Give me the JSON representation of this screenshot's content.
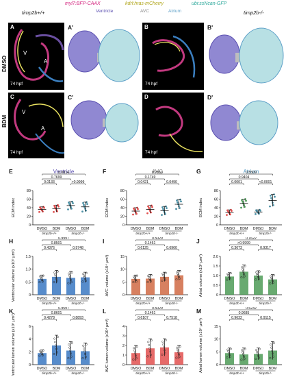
{
  "legend": {
    "items": [
      {
        "text": "myl7:BFP-CAAX",
        "color": "#d4257f"
      },
      {
        "text": "kdrl:hras-mCherry",
        "color": "#c9c21f"
      },
      {
        "text": "ubi:ssNcan-GFP",
        "color": "#2aa79a"
      }
    ]
  },
  "genotypes": {
    "wt": "timp2b+/+",
    "mut": "timp2b-/-"
  },
  "views": {
    "v": "Ventricle",
    "avc": "AVC",
    "atrium": "Atrium"
  },
  "row_labels": {
    "dmso": "DMSO",
    "bdm": "BDM"
  },
  "panels": {
    "A": "A",
    "A2": "A'",
    "B": "B",
    "B2": "B'",
    "C": "C",
    "C2": "C'",
    "D": "D",
    "D2": "D'",
    "E": "E",
    "F": "F",
    "G": "G",
    "H": "H",
    "I": "I",
    "J": "J",
    "K": "K",
    "L": "L",
    "M": "M"
  },
  "image_text": {
    "tp": "74 hpf",
    "v": "V",
    "a": "A"
  },
  "colors": {
    "ventricle": "#5a4fb0",
    "avc": "#8a8a8a",
    "atrium": "#5c9fc7",
    "red": "#e2504f",
    "green": "#4d9b57",
    "teal": "#4a8fa4",
    "blue": "#3a78c2",
    "orange": "#d06a44"
  },
  "chart_data": [
    {
      "id": "E",
      "type": "scatter",
      "title": "Ventricle",
      "ylabel": "ECM index",
      "ylim": [
        0,
        80
      ],
      "yticks": [
        "0",
        "20",
        "40",
        "60",
        "80"
      ],
      "categories": [
        "DMSO",
        "BDM",
        "DMSO",
        "BDM"
      ],
      "group_labels": [
        "timp2b+/+",
        "timp2b-/-"
      ],
      "means": [
        36,
        38,
        45,
        42
      ],
      "errors": [
        6,
        8,
        9,
        11
      ],
      "pvals": [
        {
          "p": "0.0014",
          "a": 0,
          "b": 3
        },
        {
          "p": "0.7699",
          "a": 0,
          "b": 2
        },
        {
          "p": "0.0133",
          "a": 0,
          "b": 1
        },
        {
          "p": ">0.9999",
          "a": 2,
          "b": 3
        }
      ],
      "colors": [
        "red",
        "red",
        "teal",
        "teal"
      ]
    },
    {
      "id": "F",
      "type": "scatter",
      "title": "AVC",
      "ylabel": "ECM index",
      "ylim": [
        0,
        80
      ],
      "yticks": [
        "0",
        "20",
        "40",
        "60",
        "80"
      ],
      "categories": [
        "DMSO",
        "BDM",
        "DMSO",
        "BDM"
      ],
      "group_labels": [
        "timp2b+/+",
        "timp2b-/-"
      ],
      "means": [
        32,
        36,
        33,
        48
      ],
      "errors": [
        8,
        9,
        10,
        11
      ],
      "pvals": [
        {
          "p": "0.7850",
          "a": 0,
          "b": 3
        },
        {
          "p": "0.1749",
          "a": 0,
          "b": 2
        },
        {
          "p": "0.0421",
          "a": 0,
          "b": 1
        },
        {
          "p": "0.0490",
          "a": 2,
          "b": 3
        }
      ],
      "colors": [
        "red",
        "red",
        "teal",
        "teal"
      ]
    },
    {
      "id": "G",
      "type": "scatter",
      "title": "Atrium",
      "ylabel": "ECM index",
      "ylim": [
        0,
        80
      ],
      "yticks": [
        "0",
        "20",
        "40",
        "60",
        "80"
      ],
      "categories": [
        "DMSO",
        "BDM",
        "DMSO",
        "BDM"
      ],
      "group_labels": [
        "timp2b+/+",
        "timp2b-/-"
      ],
      "means": [
        29,
        50,
        30,
        57
      ],
      "errors": [
        6,
        10,
        5,
        14
      ],
      "pvals": [
        {
          "p": "0.5509",
          "a": 0,
          "b": 3
        },
        {
          "p": "0.9404",
          "a": 0,
          "b": 2
        },
        {
          "p": "0.0001",
          "a": 0,
          "b": 1
        },
        {
          "p": "<0.0001",
          "a": 2,
          "b": 3
        }
      ],
      "colors": [
        "red",
        "green",
        "teal",
        "teal"
      ]
    },
    {
      "id": "H",
      "type": "bar",
      "ylabel": "Ventricular volume (x10⁶ μm³)",
      "ylim": [
        0,
        1.5
      ],
      "yticks": [
        "0",
        "0.5",
        "1.0",
        "1.5"
      ],
      "categories": [
        "DMSO",
        "BDM",
        "DMSO",
        "BDM"
      ],
      "group_labels": [
        "timp2b+/+",
        "timp2b-/-"
      ],
      "means": [
        0.62,
        0.7,
        0.66,
        0.68
      ],
      "errors": [
        0.15,
        0.25,
        0.25,
        0.2
      ],
      "pvals": [
        {
          "p": "0.9997",
          "a": 0,
          "b": 3
        },
        {
          "p": "0.8501",
          "a": 0,
          "b": 2
        },
        {
          "p": "0.4376",
          "a": 0,
          "b": 1
        },
        {
          "p": "0.9748",
          "a": 2,
          "b": 3
        }
      ],
      "colors": [
        "blue",
        "blue",
        "blue",
        "blue"
      ]
    },
    {
      "id": "I",
      "type": "bar",
      "ylabel": "AVC volume (x10⁴ μm³)",
      "ylim": [
        0,
        15
      ],
      "yticks": [
        "0",
        "5",
        "10",
        "15"
      ],
      "categories": [
        "DMSO",
        "BDM",
        "DMSO",
        "BDM"
      ],
      "group_labels": [
        "timp2b+/+",
        "timp2b-/-"
      ],
      "means": [
        6.2,
        6.3,
        7.0,
        7.6
      ],
      "errors": [
        1.5,
        1.6,
        1.8,
        1.9
      ],
      "pvals": [
        {
          "p": "0.5029",
          "a": 0,
          "b": 3
        },
        {
          "p": "0.1461",
          "a": 0,
          "b": 2
        },
        {
          "p": "0.6125",
          "a": 0,
          "b": 1
        },
        {
          "p": "0.6960",
          "a": 2,
          "b": 3
        }
      ],
      "colors": [
        "orange",
        "orange",
        "orange",
        "orange"
      ]
    },
    {
      "id": "J",
      "type": "bar",
      "ylabel": "Atrial volume (x10⁶ μm³)",
      "ylim": [
        0,
        2.0
      ],
      "yticks": [
        "0",
        "0.5",
        "1.0",
        "1.5",
        "2.0"
      ],
      "categories": [
        "DMSO",
        "BDM",
        "DMSO",
        "BDM"
      ],
      "group_labels": [
        "timp2b+/+",
        "timp2b-/-"
      ],
      "means": [
        0.95,
        1.2,
        1.0,
        0.8
      ],
      "errors": [
        0.2,
        0.35,
        0.25,
        0.25
      ],
      "pvals": [
        {
          "p": "0.1622",
          "a": 0,
          "b": 3
        },
        {
          "p": ">0.9999",
          "a": 0,
          "b": 2
        },
        {
          "p": "0.3673",
          "a": 0,
          "b": 1
        },
        {
          "p": "0.9317",
          "a": 2,
          "b": 3
        }
      ],
      "colors": [
        "green",
        "green",
        "green",
        "green"
      ]
    },
    {
      "id": "K",
      "type": "bar",
      "ylabel": "Ventricular lumen volume (x10⁶ μm³)",
      "ylim": [
        0,
        6
      ],
      "yticks": [
        "0",
        "2",
        "4",
        "6"
      ],
      "categories": [
        "DMSO",
        "BDM",
        "DMSO",
        "BDM"
      ],
      "group_labels": [
        "timp2b+/+",
        "timp2b-/-"
      ],
      "means": [
        1.8,
        3.0,
        2.2,
        2.1
      ],
      "errors": [
        0.5,
        1.6,
        1.4,
        1.3
      ],
      "pvals": [
        {
          "p": "0.9597",
          "a": 0,
          "b": 3
        },
        {
          "p": "0.8601",
          "a": 0,
          "b": 2
        },
        {
          "p": "0.4278",
          "a": 0,
          "b": 1
        },
        {
          "p": "0.8893",
          "a": 2,
          "b": 3
        }
      ],
      "colors": [
        "blue",
        "blue",
        "blue",
        "blue"
      ]
    },
    {
      "id": "L",
      "type": "bar",
      "ylabel": "AVC lumen volume (x10⁴ μm³)",
      "ylim": [
        0,
        4
      ],
      "yticks": [
        "0",
        "1",
        "2",
        "3",
        "4"
      ],
      "categories": [
        "DMSO",
        "BDM",
        "DMSO",
        "BDM"
      ],
      "group_labels": [
        "timp2b+/+",
        "timp2b-/-"
      ],
      "means": [
        1.2,
        1.7,
        1.8,
        1.3
      ],
      "errors": [
        0.8,
        1.0,
        0.9,
        0.7
      ],
      "pvals": [
        {
          "p": "0.5029",
          "a": 0,
          "b": 3
        },
        {
          "p": "0.1461",
          "a": 0,
          "b": 2
        },
        {
          "p": "0.6107",
          "a": 0,
          "b": 1
        },
        {
          "p": "0.7518",
          "a": 2,
          "b": 3
        }
      ],
      "colors": [
        "red",
        "red",
        "red",
        "red"
      ]
    },
    {
      "id": "M",
      "type": "bar",
      "ylabel": "Atrial lumen volume (x10⁶ μm³)",
      "ylim": [
        0,
        15
      ],
      "yticks": [
        "0",
        "5",
        "10",
        "15"
      ],
      "categories": [
        "DMSO",
        "BDM",
        "DMSO",
        "BDM"
      ],
      "group_labels": [
        "timp2b+/+",
        "timp2b-/-"
      ],
      "means": [
        4.5,
        4.0,
        4.2,
        5.5
      ],
      "errors": [
        2.0,
        2.5,
        2.3,
        3.5
      ],
      "pvals": [
        {
          "p": "0.6232",
          "a": 0,
          "b": 3
        },
        {
          "p": "0.9685",
          "a": 0,
          "b": 2
        },
        {
          "p": "0.9632",
          "a": 0,
          "b": 1
        },
        {
          "p": "0.9115",
          "a": 2,
          "b": 3
        }
      ],
      "colors": [
        "green",
        "green",
        "green",
        "green"
      ]
    }
  ]
}
